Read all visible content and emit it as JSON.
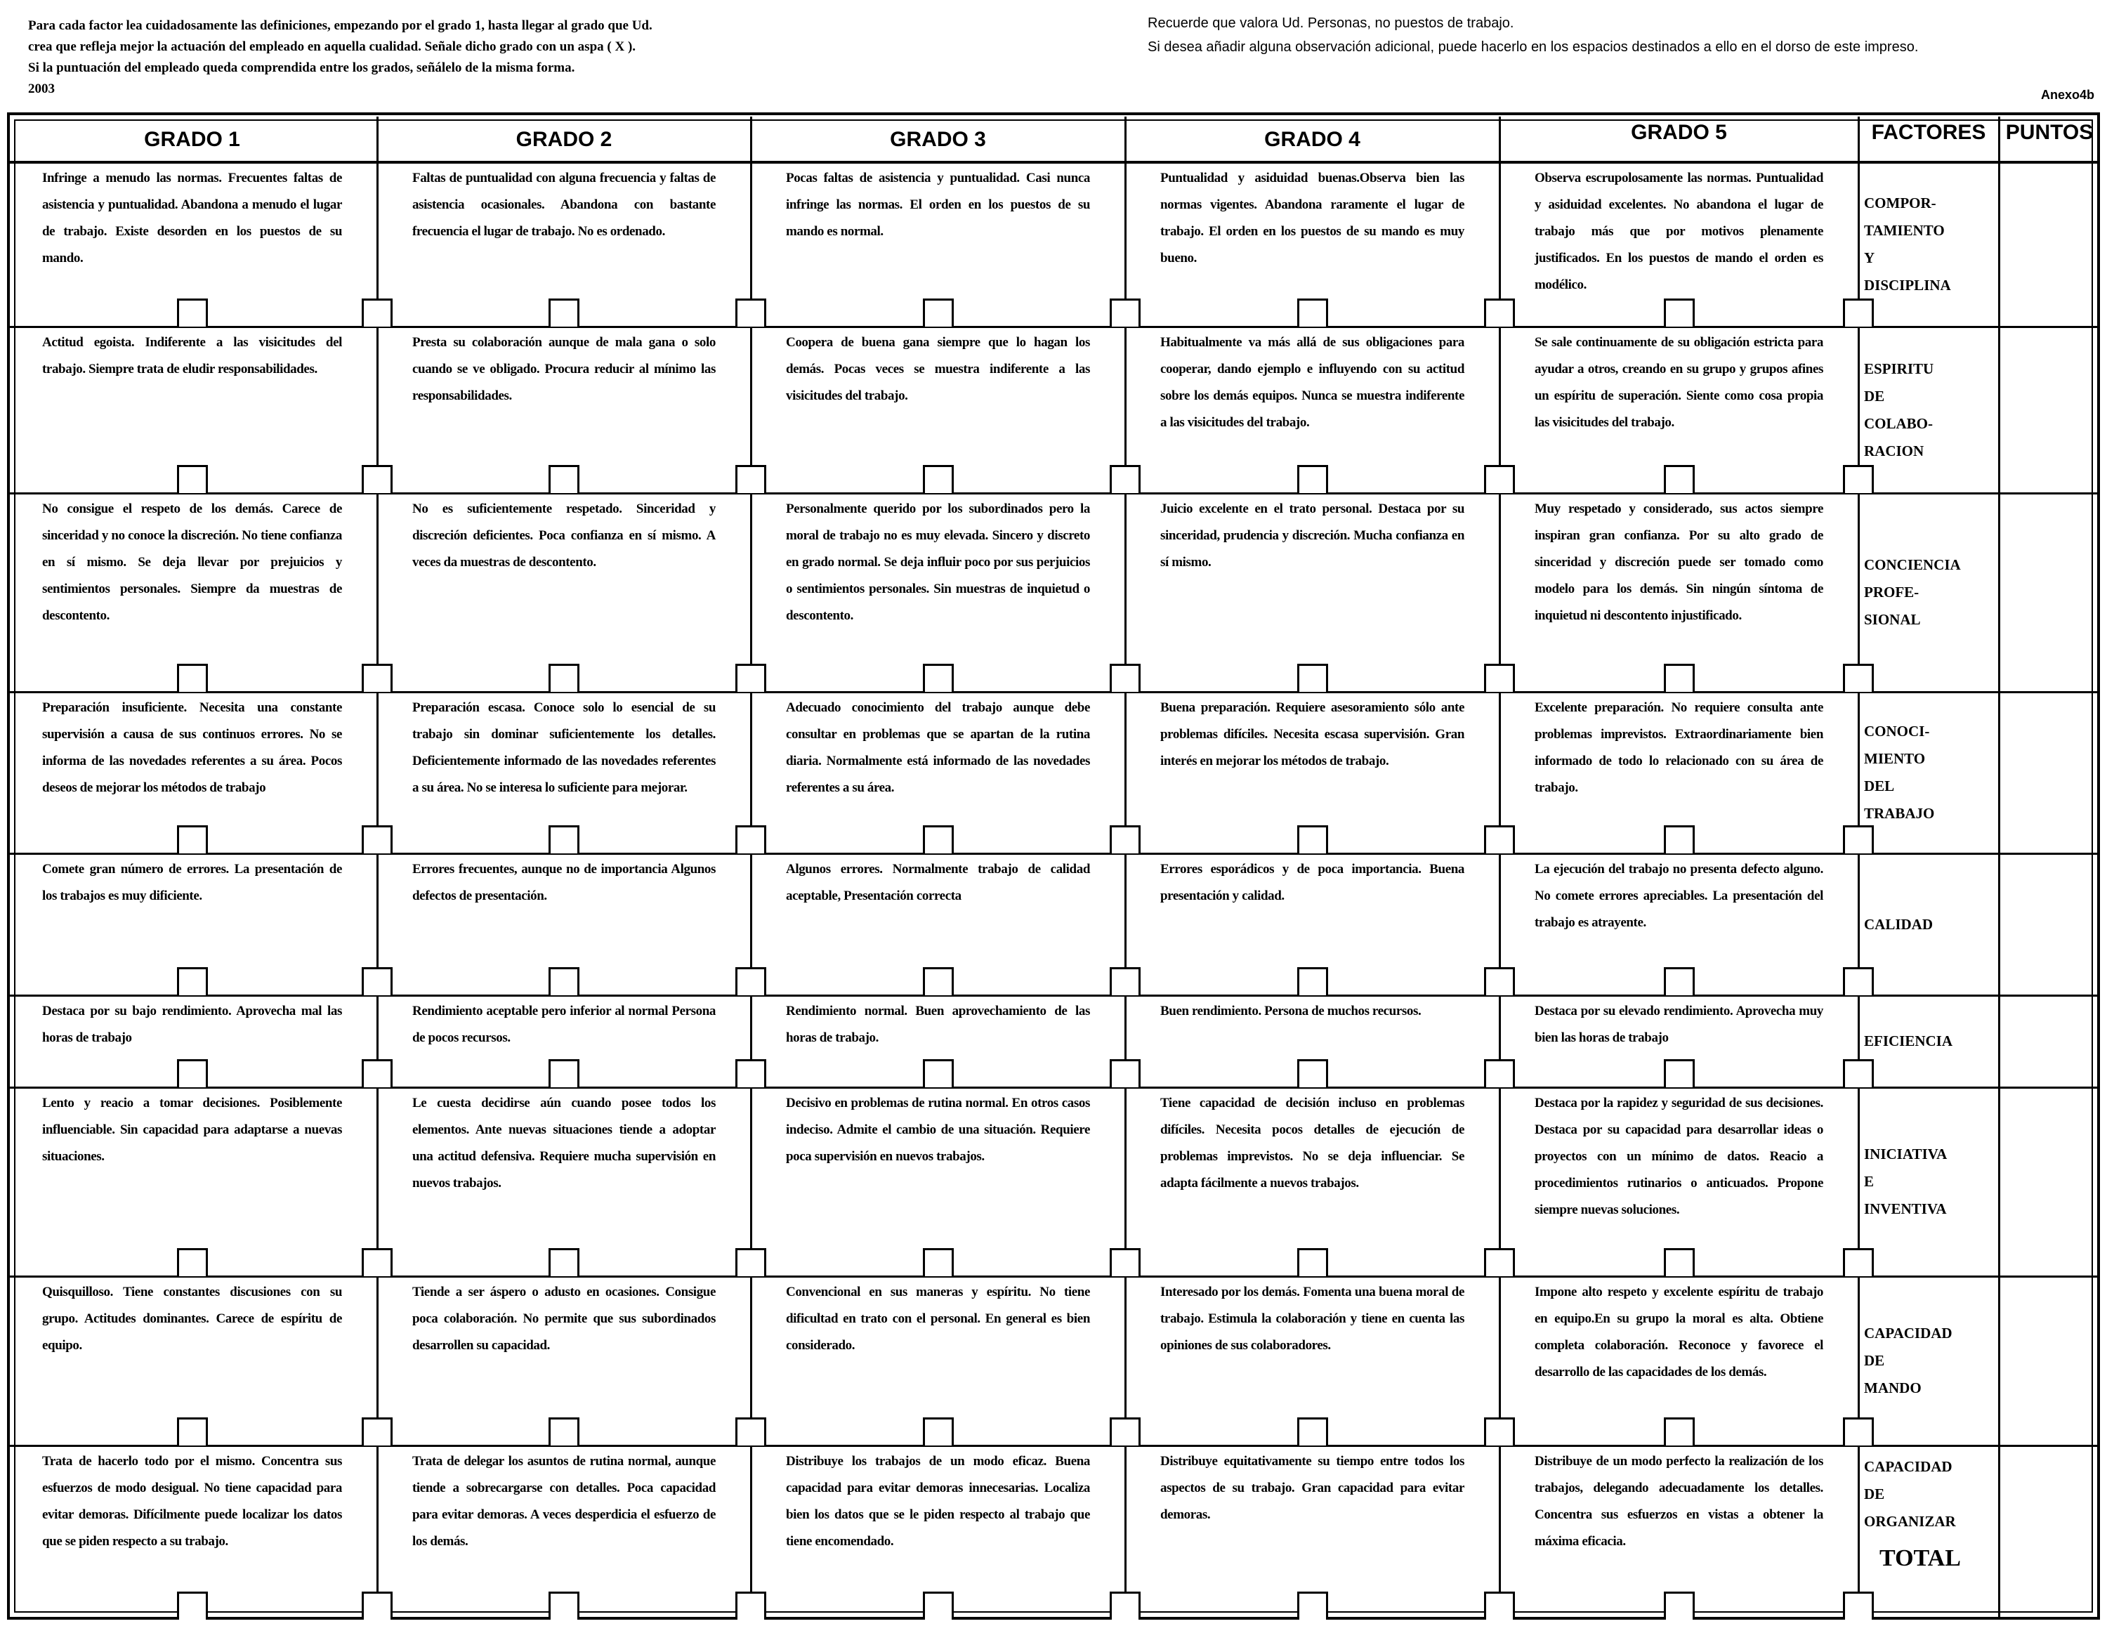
{
  "instructions_left": [
    "Para cada factor lea cuidadosamente las definiciones, empezando por el grado 1, hasta llegar al grado que Ud.",
    "crea que refleja mejor la actuación del empleado en aquella cualidad. Señale dicho grado con un aspa ( X ).",
    "Si la puntuación del empleado queda comprendida entre los grados, señálelo de la misma forma."
  ],
  "year": "2003",
  "instructions_right": [
    "Recuerde que valora Ud. Personas, no puestos de trabajo.",
    "Si desea añadir alguna observación adicional, puede hacerlo en los espacios destinados a ello en el dorso de este impreso."
  ],
  "annex": "Anexo4b",
  "headers": [
    "GRADO 1",
    "GRADO 2",
    "GRADO 3",
    "GRADO 4",
    "GRADO 5",
    "FACTORES",
    "PUNTOS"
  ],
  "rows": [
    {
      "factor": [
        "COMPOR-",
        "TAMIENTO",
        "Y",
        "DISCIPLINA"
      ],
      "grades": [
        "Infringe a menudo las normas. Frecuentes faltas de asistencia y puntualidad. Abandona a menudo el lugar de trabajo. Existe desorden en los puestos de su mando.",
        "Faltas de puntualidad con alguna frecuencia y faltas de asistencia ocasionales. Abandona con bastante frecuencia el lugar de trabajo. No es ordenado.",
        "Pocas faltas de asistencia y puntualidad. Casi nunca infringe las normas. El orden en los puestos de su mando es normal.",
        "Puntualidad y asiduidad buenas.Observa bien las normas vigentes. Abandona raramente el lugar de trabajo. El orden en los puestos de su mando es muy bueno.",
        "Observa escrupolosamente las normas. Puntualidad y asiduidad excelentes. No abandona el lugar de trabajo más que por motivos plenamente justificados. En los puestos de mando el orden es modélico."
      ]
    },
    {
      "factor": [
        "ESPIRITU",
        "DE",
        "COLABO-",
        "RACION"
      ],
      "grades": [
        "Actitud egoista. Indiferente a las visicitudes del trabajo. Siempre trata de eludir responsabilidades.",
        "Presta su colaboración aunque de mala gana o solo cuando se ve obligado. Procura reducir al mínimo las responsabilidades.",
        "Coopera de buena gana siempre que lo hagan los demás. Pocas veces se muestra indiferente a las visicitudes del trabajo.",
        "Habitualmente va más allá de sus obligaciones para cooperar, dando ejemplo e influyendo con su actitud sobre los demás equipos. Nunca se muestra indiferente a las visicitudes del trabajo.",
        "Se sale continuamente de su obligación estricta para ayudar a otros, creando en su grupo y grupos afines un espíritu de superación. Siente como cosa propia las visicitudes del trabajo."
      ]
    },
    {
      "factor": [
        "CONCIENCIA",
        "PROFE-",
        "SIONAL"
      ],
      "grades": [
        "No consigue el respeto de los demás. Carece de sinceridad y no conoce la discreción. No tiene confianza en sí mismo. Se deja llevar por prejuicios y sentimientos personales. Siempre da muestras de descontento.",
        "No es suficientemente respetado. Sinceridad y discreción deficientes. Poca confianza en sí mismo. A veces da muestras de descontento.",
        "Personalmente querido por los subordinados pero la moral de trabajo no es muy elevada. Sincero y discreto en grado normal. Se deja influir poco por sus perjuicios o sentimientos personales. Sin muestras de inquietud o descontento.",
        "Juicio excelente en el trato personal. Destaca por su sinceridad, prudencia y discreción. Mucha confianza en sí mismo.",
        "Muy respetado y considerado, sus actos siempre inspiran gran confianza. Por su alto grado de sinceridad y discreción puede ser tomado como modelo para los demás. Sin ningún síntoma de inquietud ni descontento injustificado."
      ]
    },
    {
      "factor": [
        "CONOCI-",
        "MIENTO",
        "DEL",
        "TRABAJO"
      ],
      "grades": [
        "Preparación insuficiente. Necesita una constante supervisión a causa de sus continuos errores. No se informa de las novedades referentes a su área. Pocos deseos de mejorar los métodos de trabajo",
        "Preparación escasa. Conoce solo lo esencial de su trabajo sin dominar suficientemente los detalles. Deficientemente informado de las novedades referentes a su área. No se interesa lo suficiente para mejorar.",
        "Adecuado conocimiento del trabajo aunque debe consultar en problemas que se apartan de la rutina diaria. Normalmente está informado de las novedades referentes a su área.",
        "Buena preparación. Requiere asesoramiento sólo ante problemas difíciles. Necesita escasa supervisión. Gran interés en mejorar los métodos de trabajo.",
        "Excelente preparación. No requiere consulta ante problemas imprevistos. Extraordinariamente bien informado de todo lo relacionado con su área de trabajo."
      ]
    },
    {
      "factor": [
        "CALIDAD"
      ],
      "grades": [
        "Comete gran número de errores. La presentación de los trabajos es muy dificiente.",
        "Errores frecuentes, aunque no de importancia Algunos defectos de presentación.",
        "Algunos errores. Normalmente trabajo de calidad aceptable, Presentación correcta",
        "Errores esporádicos y de poca importancia. Buena presentación y calidad.",
        "La ejecución del trabajo no presenta defecto alguno. No comete errores apreciables. La presentación del trabajo es atrayente."
      ]
    },
    {
      "factor": [
        "EFICIENCIA"
      ],
      "grades": [
        "Destaca por su bajo rendimiento. Aprovecha mal las horas de trabajo",
        "Rendimiento aceptable pero inferior al normal Persona de pocos recursos.",
        "Rendimiento normal. Buen aprovechamiento de las horas de trabajo.",
        "Buen rendimiento. Persona de muchos recursos.",
        "Destaca por su elevado rendimiento. Aprovecha muy bien las horas de trabajo"
      ]
    },
    {
      "factor": [
        "INICIATIVA",
        "E",
        "INVENTIVA"
      ],
      "grades": [
        "Lento y reacio a tomar decisiones. Posiblemente influenciable. Sin capacidad para adaptarse a nuevas situaciones.",
        "Le cuesta decidirse aún cuando posee todos los elementos. Ante nuevas situaciones tiende a adoptar una actitud defensiva. Requiere mucha supervisión en nuevos trabajos.",
        "Decisivo en problemas de rutina normal. En otros casos indeciso. Admite el cambio de una situación. Requiere poca supervisión en nuevos trabajos.",
        "Tiene capacidad de decisión incluso en problemas difíciles. Necesita pocos detalles de ejecución de problemas imprevistos. No se deja influenciar. Se adapta fácilmente a nuevos trabajos.",
        "Destaca por la rapidez y seguridad de sus decisiones. Destaca por su capacidad para desarrollar ideas o proyectos con un mínimo de datos. Reacio a procedimientos rutinarios o anticuados. Propone siempre nuevas soluciones."
      ]
    },
    {
      "factor": [
        "CAPACIDAD",
        "DE",
        "MANDO"
      ],
      "grades": [
        "Quisquilloso. Tiene constantes discusiones con su grupo. Actitudes dominantes. Carece de espíritu de equipo.",
        "Tiende a ser áspero o adusto en ocasiones. Consigue poca colaboración. No permite que sus subordinados desarrollen su capacidad.",
        "Convencional en sus maneras y espíritu. No tiene dificultad en trato con el personal. En general es bien considerado.",
        "Interesado por los demás. Fomenta una buena moral de trabajo. Estimula la colaboración y tiene en cuenta las opiniones de sus colaboradores.",
        "Impone alto respeto y excelente espíritu de trabajo en equipo.En su grupo la moral es alta. Obtiene completa colaboración. Reconoce y favorece el desarrollo de las capacidades de los demás."
      ]
    },
    {
      "factor": [
        "CAPACIDAD",
        "DE",
        "ORGANIZAR"
      ],
      "grades": [
        "Trata de hacerlo todo por el mismo. Concentra sus esfuerzos de modo desigual. No tiene capacidad para evitar demoras. Difícilmente puede localizar los datos que se piden respecto a su trabajo.",
        "Trata de delegar los asuntos de rutina normal, aunque tiende a sobrecargarse con detalles. Poca capacidad para evitar demoras. A veces desperdicia el esfuerzo de los demás.",
        "Distribuye los trabajos de un modo eficaz. Buena capacidad para evitar demoras innecesarias. Localiza bien los datos que se le piden respecto al trabajo que tiene encomendado.",
        "Distribuye equitativamente su tiempo entre todos los aspectos de su trabajo. Gran capacidad para evitar demoras.",
        "Distribuye de un modo perfecto la realización de los trabajos, delegando adecuadamente los detalles. Concentra sus esfuerzos en vistas a obtener la máxima eficacia."
      ]
    }
  ],
  "total_label": "TOTAL"
}
